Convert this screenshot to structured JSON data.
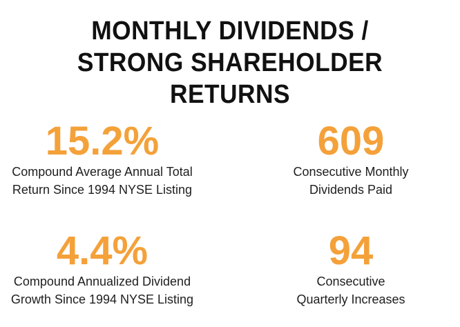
{
  "title": {
    "line1": "MONTHLY DIVIDENDS /",
    "line2": "STRONG SHAREHOLDER RETURNS"
  },
  "stats": [
    {
      "value": "15.2%",
      "desc_line1": "Compound Average Annual Total",
      "desc_line2": "Return Since 1994 NYSE Listing"
    },
    {
      "value": "609",
      "desc_line1": "Consecutive Monthly",
      "desc_line2": "Dividends Paid"
    },
    {
      "value": "4.4%",
      "desc_line1": "Compound Annualized Dividend",
      "desc_line2": "Growth Since 1994 NYSE Listing"
    },
    {
      "value": "94",
      "desc_line1": "Consecutive",
      "desc_line2": "Quarterly Increases"
    }
  ],
  "colors": {
    "accent": "#f4a13a",
    "title": "#111111",
    "text": "#1e1e1e",
    "background": "#ffffff"
  }
}
